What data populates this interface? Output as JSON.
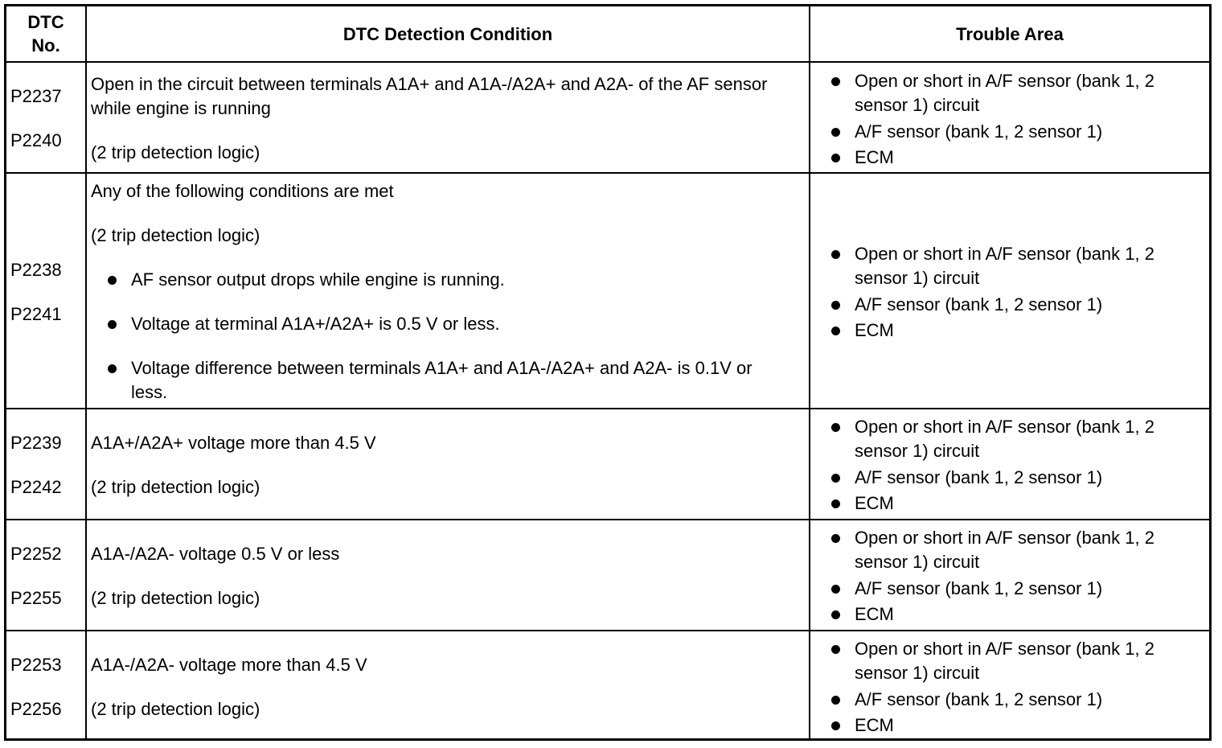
{
  "header": {
    "dtc_no_line1": "DTC",
    "dtc_no_line2": "No.",
    "condition": "DTC Detection Condition",
    "trouble_area": "Trouble Area"
  },
  "rows": [
    {
      "codes": [
        "P2237",
        "P2240"
      ],
      "condition": [
        "Open in the circuit between terminals A1A+ and A1A-/A2A+ and A2A- of the AF sensor while engine is running",
        "(2 trip detection logic)"
      ],
      "trouble": [
        "Open or short in A/F sensor (bank 1, 2 sensor 1) circuit",
        "A/F sensor (bank 1, 2 sensor 1)",
        "ECM"
      ]
    },
    {
      "codes": [
        "P2238",
        "P2241"
      ],
      "condition": [
        "Any of the following conditions are met",
        "(2 trip detection logic)"
      ],
      "condition_bullets": [
        "AF sensor output drops while engine is running.",
        "Voltage at terminal A1A+/A2A+ is 0.5 V or less.",
        "Voltage difference between terminals A1A+ and A1A-/A2A+ and A2A- is 0.1V or less."
      ],
      "trouble": [
        "Open or short in A/F sensor (bank 1, 2 sensor 1) circuit",
        "A/F sensor (bank 1, 2 sensor 1)",
        "ECM"
      ]
    },
    {
      "codes": [
        "P2239",
        "P2242"
      ],
      "condition": [
        "A1A+/A2A+ voltage more than 4.5 V",
        "(2 trip detection logic)"
      ],
      "trouble": [
        "Open or short in A/F sensor (bank 1, 2 sensor 1) circuit",
        "A/F sensor (bank 1, 2 sensor 1)",
        "ECM"
      ]
    },
    {
      "codes": [
        "P2252",
        "P2255"
      ],
      "condition": [
        "A1A-/A2A- voltage 0.5 V or less",
        "(2 trip detection logic)"
      ],
      "trouble": [
        "Open or short in A/F sensor (bank 1, 2 sensor 1) circuit",
        "A/F sensor (bank 1, 2 sensor 1)",
        "ECM"
      ]
    },
    {
      "codes": [
        "P2253",
        "P2256"
      ],
      "condition": [
        "A1A-/A2A- voltage more than 4.5 V",
        "(2 trip detection logic)"
      ],
      "trouble": [
        "Open or short in A/F sensor (bank 1, 2 sensor 1) circuit",
        "A/F sensor (bank 1, 2 sensor 1)",
        "ECM"
      ]
    }
  ]
}
